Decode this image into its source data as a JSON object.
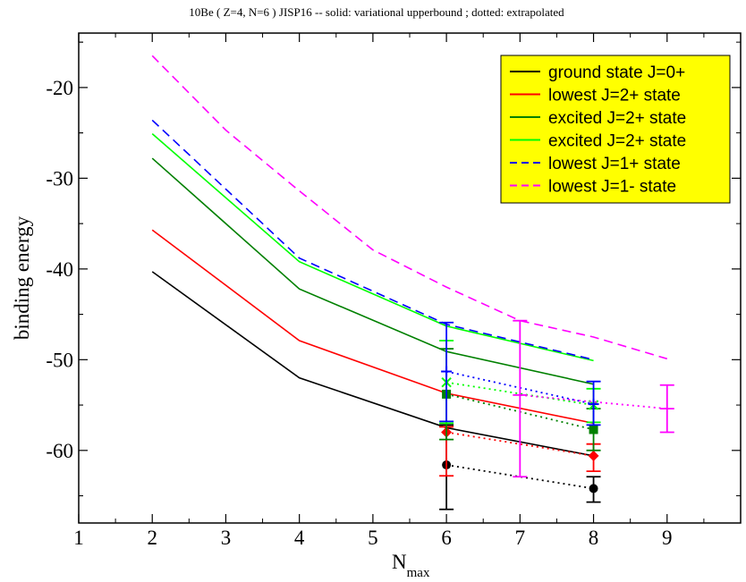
{
  "chart_data": {
    "type": "line",
    "title": "10Be  ( Z=4, N=6 )    JISP16 -- solid: variational upperbound ;  dotted: extrapolated",
    "xlabel_main": "N",
    "xlabel_sub": "max",
    "ylabel": "binding energy",
    "xlim": [
      1,
      10
    ],
    "ylim": [
      -68,
      -14
    ],
    "x_ticks": [
      1,
      2,
      3,
      4,
      5,
      6,
      7,
      8,
      9
    ],
    "y_ticks": [
      -60,
      -50,
      -40,
      -30,
      -20
    ],
    "legend_position": "top-right",
    "series": [
      {
        "name": "ground state J=0+",
        "color": "#000000",
        "dash": "solid",
        "x": [
          2,
          4,
          6,
          8
        ],
        "y": [
          -40.3,
          -52.0,
          -57.5,
          -60.6
        ]
      },
      {
        "name": "lowest J=2+ state",
        "color": "#ff0000",
        "dash": "solid",
        "x": [
          2,
          4,
          6,
          8
        ],
        "y": [
          -35.7,
          -47.9,
          -53.7,
          -57.0
        ]
      },
      {
        "name": "excited J=2+ state",
        "color": "#008000",
        "dash": "solid",
        "x": [
          2,
          4,
          6,
          8
        ],
        "y": [
          -27.8,
          -42.2,
          -49.1,
          -52.7
        ]
      },
      {
        "name": "excited J=2+ state",
        "color": "#00ff00",
        "dash": "solid",
        "x": [
          2,
          4,
          6,
          8
        ],
        "y": [
          -25.1,
          -39.2,
          -46.3,
          -50.1
        ]
      },
      {
        "name": "lowest J=1+ state",
        "color": "#0000ff",
        "dash": "dashed",
        "x": [
          2,
          4,
          6,
          8
        ],
        "y": [
          -23.6,
          -38.8,
          -46.1,
          -50.0
        ]
      },
      {
        "name": "lowest J=1- state",
        "color": "#ff00ff",
        "dash": "dashed",
        "x": [
          2,
          3,
          4,
          5,
          6,
          7,
          8,
          9
        ],
        "y": [
          -16.5,
          -24.7,
          -31.4,
          -37.9,
          -42.0,
          -45.7,
          -47.5,
          -49.9
        ]
      }
    ],
    "extrapolated": [
      {
        "color": "#000000",
        "marker": "circle",
        "points": [
          {
            "x": 6,
            "y": -61.6,
            "err_lo": -66.5,
            "err_hi": -57.2
          },
          {
            "x": 8,
            "y": -64.2,
            "err_lo": -65.7,
            "err_hi": -62.9
          }
        ]
      },
      {
        "color": "#ff0000",
        "marker": "diamond",
        "points": [
          {
            "x": 6,
            "y": -58.0,
            "err_lo": -62.8,
            "err_hi": -57.4
          },
          {
            "x": 8,
            "y": -60.6,
            "err_lo": -62.3,
            "err_hi": -59.3
          }
        ]
      },
      {
        "color": "#008000",
        "marker": "square",
        "points": [
          {
            "x": 6,
            "y": -53.8,
            "err_lo": -58.8,
            "err_hi": -48.8
          },
          {
            "x": 8,
            "y": -57.7,
            "err_lo": -60.0,
            "err_hi": -55.4
          }
        ]
      },
      {
        "color": "#00ff00",
        "marker": "cross",
        "points": [
          {
            "x": 6,
            "y": -52.5,
            "err_lo": -57.0,
            "err_hi": -47.9
          },
          {
            "x": 8,
            "y": -55.0,
            "err_lo": -56.9,
            "err_hi": -53.2
          }
        ]
      },
      {
        "color": "#0000ff",
        "marker": "plus",
        "points": [
          {
            "x": 6,
            "y": -51.3,
            "err_lo": -56.8,
            "err_hi": -45.9
          },
          {
            "x": 8,
            "y": -54.9,
            "err_lo": -57.2,
            "err_hi": -52.4
          }
        ]
      },
      {
        "color": "#ff00ff",
        "marker": "none",
        "points": [
          {
            "x": 7,
            "y": -53.9,
            "err_lo": -62.9,
            "err_hi": -45.7
          },
          {
            "x": 9,
            "y": -55.4,
            "err_lo": -58.0,
            "err_hi": -52.8
          }
        ]
      }
    ],
    "legend_bg": "#ffff00"
  }
}
